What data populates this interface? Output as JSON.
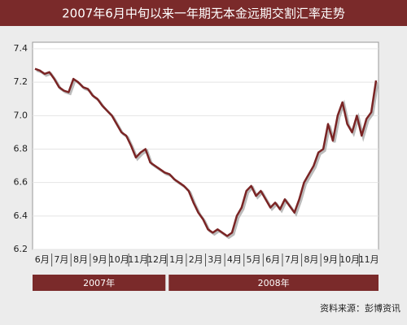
{
  "chart_data": {
    "type": "line",
    "title": "2007年6月中旬以来一年期无本金远期交割汇率走势",
    "categories": [
      "6月",
      null,
      null,
      null,
      "7月",
      null,
      null,
      null,
      "8月",
      null,
      null,
      null,
      "9月",
      null,
      null,
      null,
      "10月",
      null,
      null,
      null,
      "11月",
      null,
      null,
      null,
      "12月",
      null,
      null,
      null,
      "1月",
      null,
      null,
      null,
      "2月",
      null,
      null,
      null,
      "3月",
      null,
      null,
      null,
      "4月",
      null,
      null,
      null,
      "5月",
      null,
      null,
      null,
      "6月",
      null,
      null,
      null,
      "7月",
      null,
      null,
      null,
      "8月",
      null,
      null,
      null,
      "9月",
      null,
      null,
      null,
      "10月",
      null,
      null,
      null,
      "11月",
      null,
      null,
      null
    ],
    "values": [
      7.28,
      7.27,
      7.25,
      7.26,
      7.22,
      7.17,
      7.15,
      7.14,
      7.22,
      7.2,
      7.17,
      7.16,
      7.12,
      7.1,
      7.06,
      7.03,
      7.0,
      6.95,
      6.9,
      6.88,
      6.82,
      6.75,
      6.78,
      6.8,
      6.72,
      6.7,
      6.68,
      6.66,
      6.65,
      6.62,
      6.6,
      6.58,
      6.55,
      6.48,
      6.42,
      6.38,
      6.32,
      6.3,
      6.32,
      6.3,
      6.28,
      6.3,
      6.4,
      6.45,
      6.55,
      6.58,
      6.52,
      6.55,
      6.5,
      6.45,
      6.48,
      6.44,
      6.5,
      6.46,
      6.42,
      6.5,
      6.6,
      6.65,
      6.7,
      6.78,
      6.8,
      6.95,
      6.85,
      7.0,
      7.08,
      6.95,
      6.9,
      7.0,
      6.88,
      6.98,
      7.02,
      7.21
    ],
    "color": "#7a2424",
    "ylim": [
      6.2,
      7.4
    ],
    "yticks": [
      6.2,
      6.4,
      6.6,
      6.8,
      {
        "value": 7,
        "label": "7.0"
      },
      7.2,
      7.4
    ],
    "grid": true,
    "year_labels": [
      "2007年",
      "2008年"
    ],
    "source": "资料来源：彭博资讯"
  }
}
